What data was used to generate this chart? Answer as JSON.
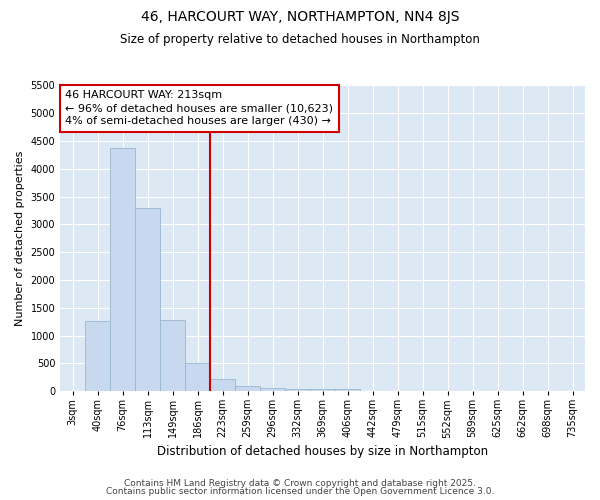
{
  "title": "46, HARCOURT WAY, NORTHAMPTON, NN4 8JS",
  "subtitle": "Size of property relative to detached houses in Northampton",
  "xlabel": "Distribution of detached houses by size in Northampton",
  "ylabel": "Number of detached properties",
  "bar_color": "#c8d8ee",
  "bar_edge_color": "#7aaan0",
  "background_color": "#dce8f4",
  "fig_background": "#ffffff",
  "grid_color": "#ffffff",
  "categories": [
    "3sqm",
    "40sqm",
    "76sqm",
    "113sqm",
    "149sqm",
    "186sqm",
    "223sqm",
    "259sqm",
    "296sqm",
    "332sqm",
    "369sqm",
    "406sqm",
    "442sqm",
    "479sqm",
    "515sqm",
    "552sqm",
    "589sqm",
    "625sqm",
    "662sqm",
    "698sqm",
    "735sqm"
  ],
  "values": [
    0,
    1270,
    4380,
    3300,
    1280,
    500,
    210,
    90,
    60,
    40,
    30,
    40,
    0,
    0,
    0,
    0,
    0,
    0,
    0,
    0,
    0
  ],
  "ylim": [
    0,
    5500
  ],
  "yticks": [
    0,
    500,
    1000,
    1500,
    2000,
    2500,
    3000,
    3500,
    4000,
    4500,
    5000,
    5500
  ],
  "property_line_color": "#cc0000",
  "property_line_index": 6,
  "annotation_line1": "46 HARCOURT WAY: 213sqm",
  "annotation_line2": "← 96% of detached houses are smaller (10,623)",
  "annotation_line3": "4% of semi-detached houses are larger (430) →",
  "annotation_box_color": "#cc0000",
  "footer_line1": "Contains HM Land Registry data © Crown copyright and database right 2025.",
  "footer_line2": "Contains public sector information licensed under the Open Government Licence 3.0.",
  "title_fontsize": 10,
  "subtitle_fontsize": 8.5,
  "annotation_fontsize": 8,
  "tick_fontsize": 7,
  "ylabel_fontsize": 8,
  "xlabel_fontsize": 8.5,
  "footer_fontsize": 6.5
}
